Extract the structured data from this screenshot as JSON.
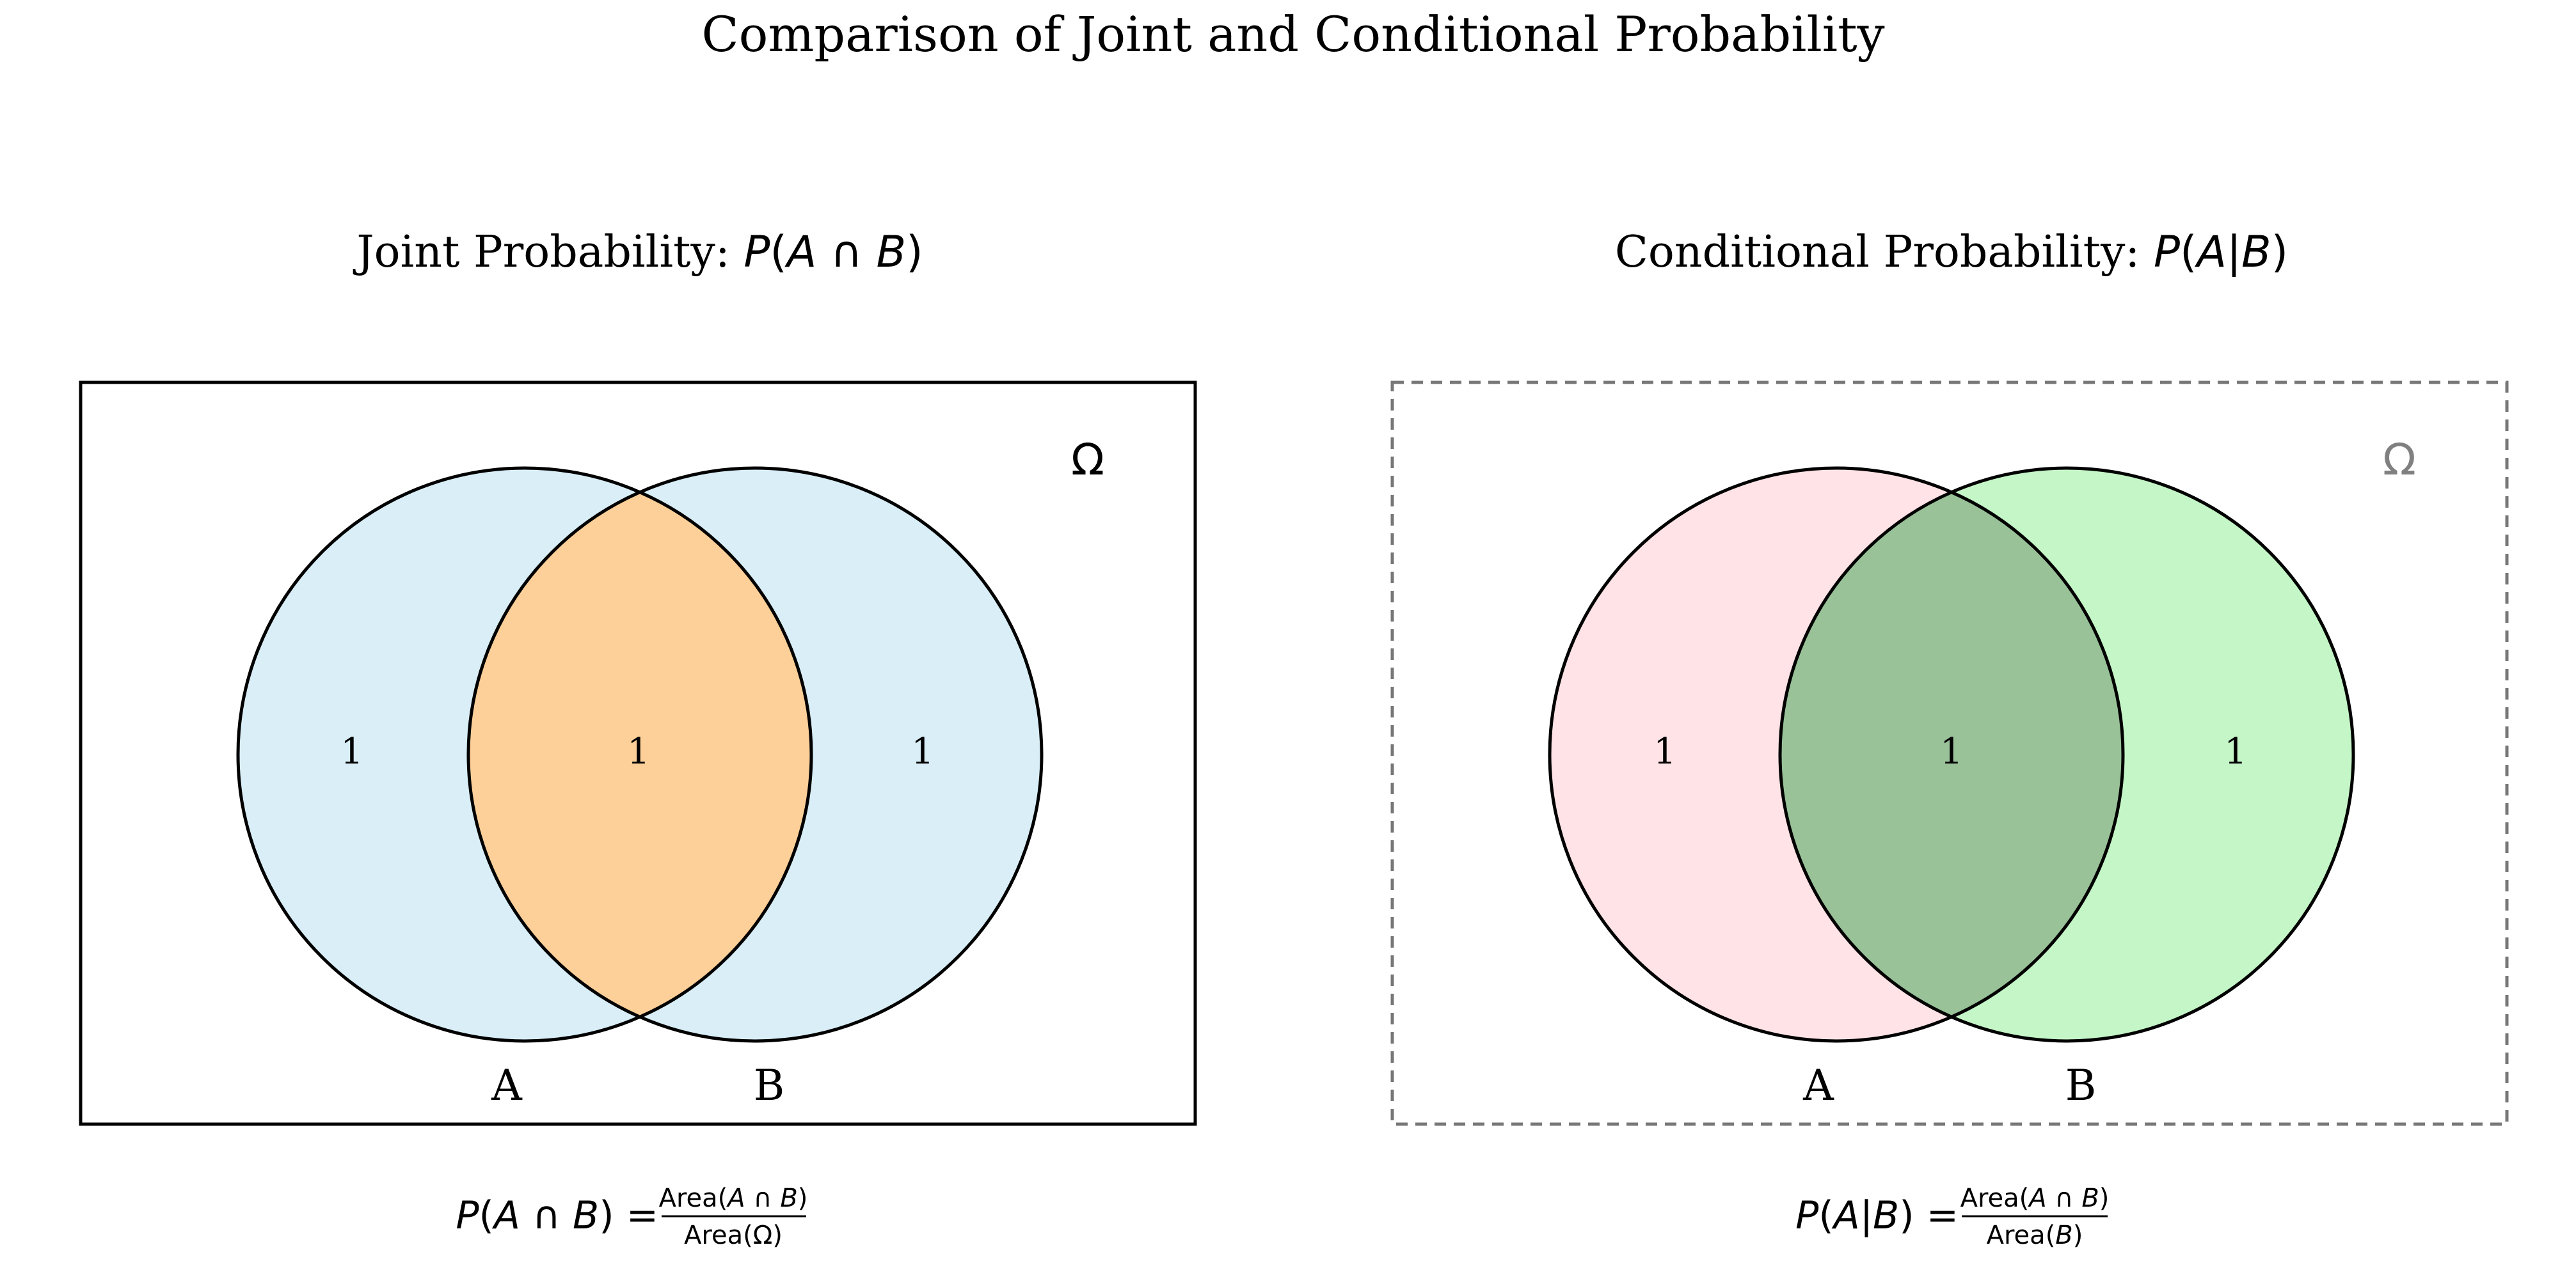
{
  "title": "Comparison of Joint and Conditional Probability",
  "colors": {
    "joint_circle_fill": "#d9eef7",
    "joint_intersection_fill": "#fdd099",
    "cond_a_fill": "#ffe3e6",
    "cond_b_fill": "#c5f6c7",
    "cond_intersection_fill": "#99c299",
    "stroke": "#000000",
    "dashed_border": "#777777",
    "omega_cond": "#808080"
  },
  "panels": {
    "joint": {
      "title_prefix": "Joint Probability: ",
      "title_math": {
        "p": "P",
        "open": "(",
        "a": "A",
        "op": " ∩ ",
        "b": "B",
        "close": ")"
      },
      "omega": "Ω",
      "labels": {
        "a": "A",
        "b": "B"
      },
      "region_counts": {
        "a_only": "1",
        "intersection": "1",
        "b_only": "1"
      },
      "formula": {
        "lhs": {
          "p": "P",
          "open": "(",
          "a": "A",
          "op": " ∩ ",
          "b": "B",
          "close": ")"
        },
        "eq": " = ",
        "num": {
          "word": "Area",
          "open": "(",
          "a": "A",
          "op": " ∩ ",
          "b": "B",
          "close": ")"
        },
        "den": {
          "word": "Area",
          "open": "(",
          "sym": "Ω",
          "close": ")"
        }
      }
    },
    "conditional": {
      "title_prefix": "Conditional Probability: ",
      "title_math": {
        "p": "P",
        "open": "(",
        "a": "A",
        "op": "|",
        "b": "B",
        "close": ")"
      },
      "omega": "Ω",
      "labels": {
        "a": "A",
        "b": "B"
      },
      "region_counts": {
        "a_only": "1",
        "intersection": "1",
        "b_only": "1"
      },
      "formula": {
        "lhs": {
          "p": "P",
          "open": "(",
          "a": "A",
          "op": "|",
          "b": "B",
          "close": ")"
        },
        "eq": " = ",
        "num": {
          "word": "Area",
          "open": "(",
          "a": "A",
          "op": " ∩ ",
          "b": "B",
          "close": ")"
        },
        "den": {
          "word": "Area",
          "open": "(",
          "b": "B",
          "close": ")"
        }
      }
    }
  }
}
